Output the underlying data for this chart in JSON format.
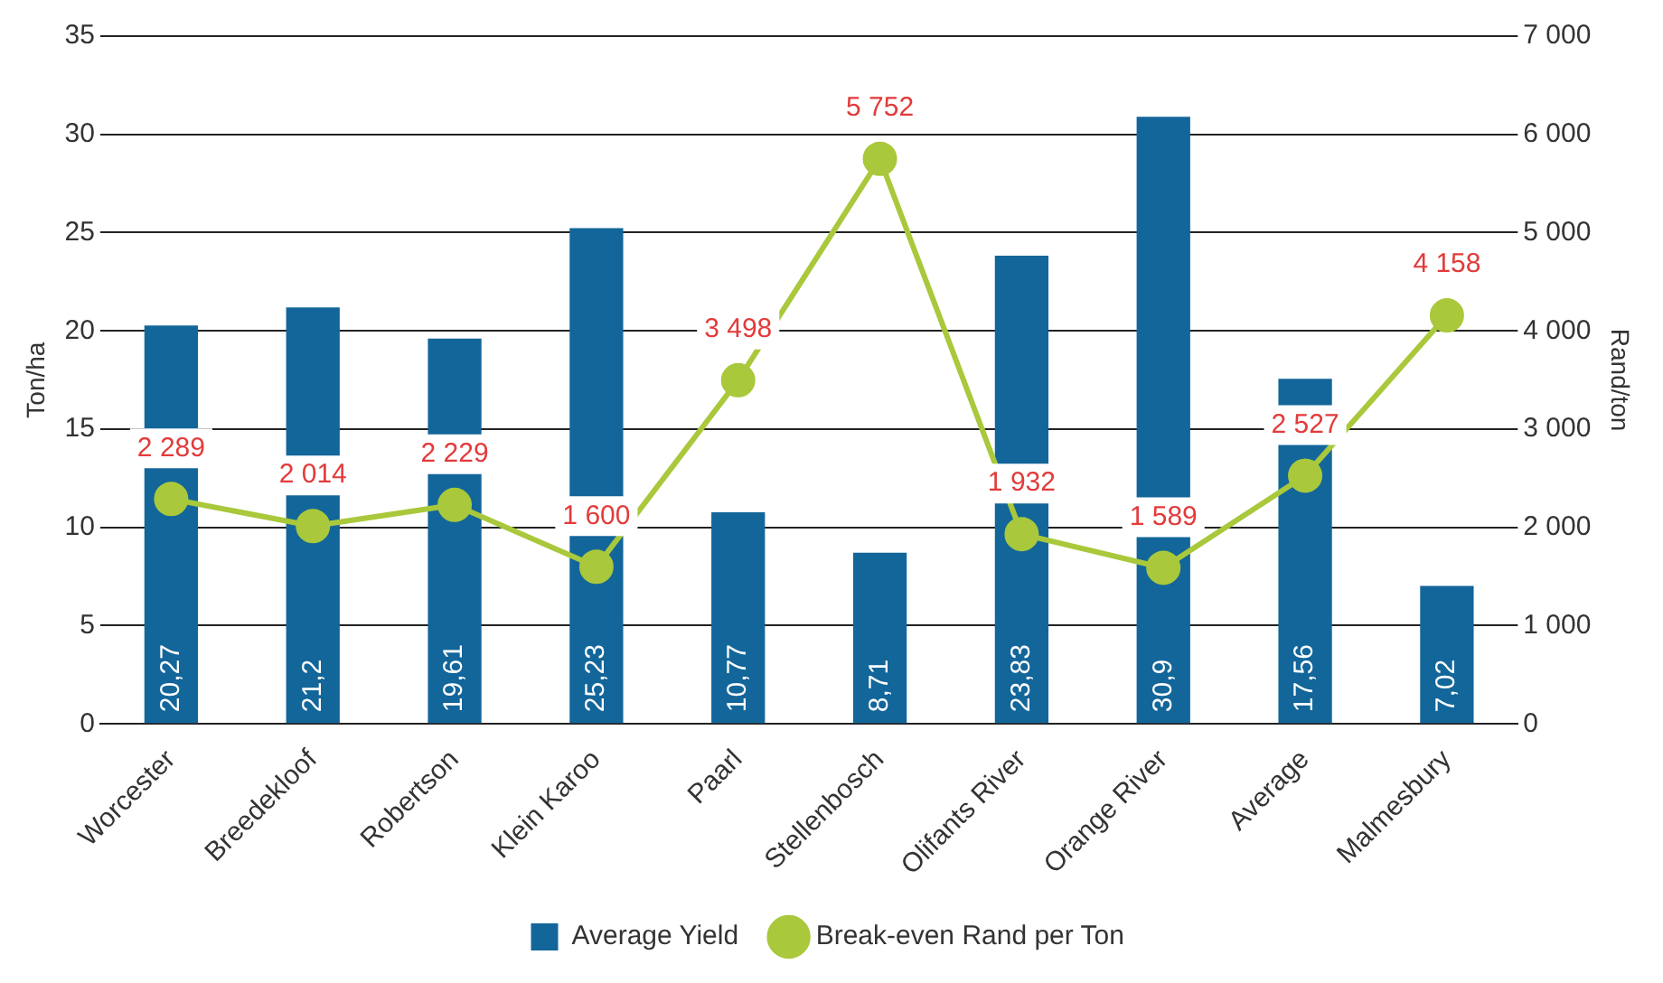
{
  "chart_data": {
    "type": "bar",
    "ylabel": "Ton/ha",
    "y2label": "Rand/ton",
    "categories": [
      "Worcester",
      "Breedekloof",
      "Robertson",
      "Klein Karoo",
      "Paarl",
      "Stellenbosch",
      "Olifants River",
      "Orange River",
      "Average",
      "Malmesbury"
    ],
    "series": [
      {
        "name": "Average Yield",
        "color": "#13669a",
        "values": [
          20.27,
          21.2,
          19.61,
          25.23,
          10.77,
          8.71,
          23.83,
          30.9,
          17.56,
          7.02
        ],
        "value_labels": [
          "20,27",
          "21,2",
          "19,61",
          "25,23",
          "10,77",
          "8,71",
          "23,83",
          "30,9",
          "17,56",
          "7,02"
        ]
      },
      {
        "name": "Break-even Rand per Ton",
        "type": "line",
        "axis": "y2",
        "color": "#a9c83b",
        "marker": "circle",
        "values": [
          2289,
          2014,
          2229,
          1600,
          3498,
          5752,
          1932,
          1589,
          2527,
          4158
        ],
        "value_labels": [
          "2 289",
          "2 014",
          "2 229",
          "1 600",
          "3 498",
          "5 752",
          "1 932",
          "1 589",
          "2 527",
          "4 158"
        ]
      }
    ],
    "ylim": [
      0,
      35
    ],
    "yticks": [
      0,
      5,
      10,
      15,
      20,
      25,
      30,
      35
    ],
    "y2lim": [
      0,
      7000
    ],
    "y2ticks": [
      0,
      {
        "value": 1000,
        "label": "1 000"
      },
      {
        "value": 2000,
        "label": "2 000"
      },
      {
        "value": 3000,
        "label": "3 000"
      },
      {
        "value": 4000,
        "label": "4 000"
      },
      {
        "value": 5000,
        "label": "5 000"
      },
      {
        "value": 6000,
        "label": "6 000"
      },
      {
        "value": 7000,
        "label": "7 000"
      }
    ],
    "grid": "y",
    "legend": "bottom"
  }
}
